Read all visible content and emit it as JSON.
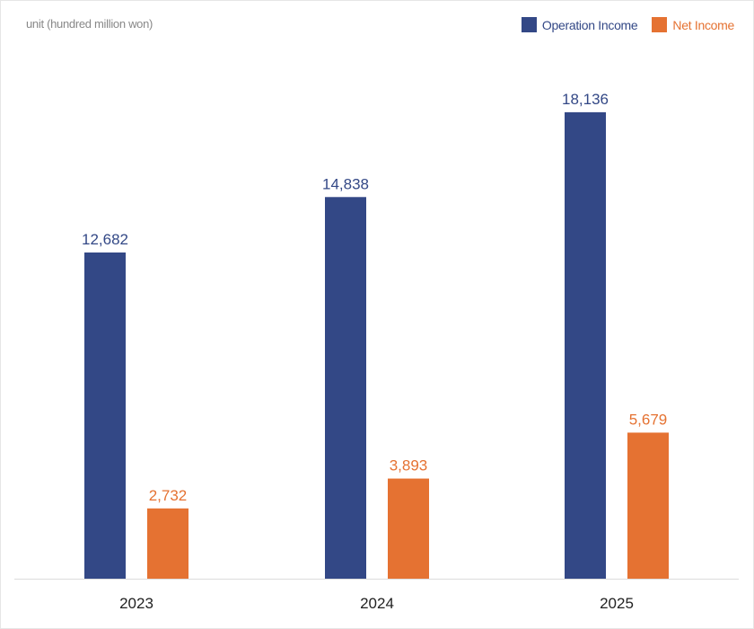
{
  "unit_label": "unit (hundred million won)",
  "chart_data": {
    "type": "bar",
    "categories": [
      "2023",
      "2024",
      "2025"
    ],
    "series": [
      {
        "name": "Operation Income",
        "values": [
          12682,
          14838,
          18136
        ],
        "labels": [
          "12,682",
          "14,838",
          "18,136"
        ],
        "color": "#334886"
      },
      {
        "name": "Net Income",
        "values": [
          2732,
          3893,
          5679
        ],
        "labels": [
          "2,732",
          "3,893",
          "5,679"
        ],
        "color": "#e57232"
      }
    ],
    "title": "",
    "xlabel": "",
    "ylabel": "",
    "ylim": [
      0,
      20000
    ],
    "grid": false,
    "legend": "top-right"
  }
}
